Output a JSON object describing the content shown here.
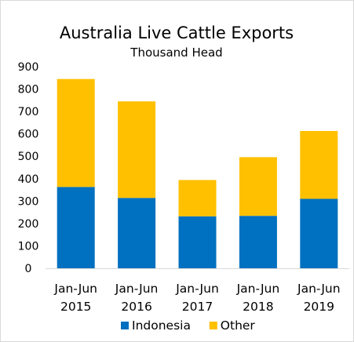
{
  "chart_data": {
    "type": "bar",
    "stacked": true,
    "title": "Australia Live Cattle Exports",
    "subtitle": "Thousand Head",
    "categories": [
      [
        "Jan-Jun",
        "2015"
      ],
      [
        "Jan-Jun",
        "2016"
      ],
      [
        "Jan-Jun",
        "2017"
      ],
      [
        "Jan-Jun",
        "2018"
      ],
      [
        "Jan-Jun",
        "2019"
      ]
    ],
    "series": [
      {
        "name": "Indonesia",
        "color": "#0070c0",
        "values": [
          363,
          314,
          232,
          234,
          310
        ]
      },
      {
        "name": "Other",
        "color": "#ffc000",
        "values": [
          482,
          431,
          162,
          262,
          303
        ]
      }
    ],
    "ylim": [
      0,
      900
    ],
    "yticks": [
      0,
      100,
      200,
      300,
      400,
      500,
      600,
      700,
      800,
      900
    ],
    "grid": false,
    "legend": "bottom"
  }
}
